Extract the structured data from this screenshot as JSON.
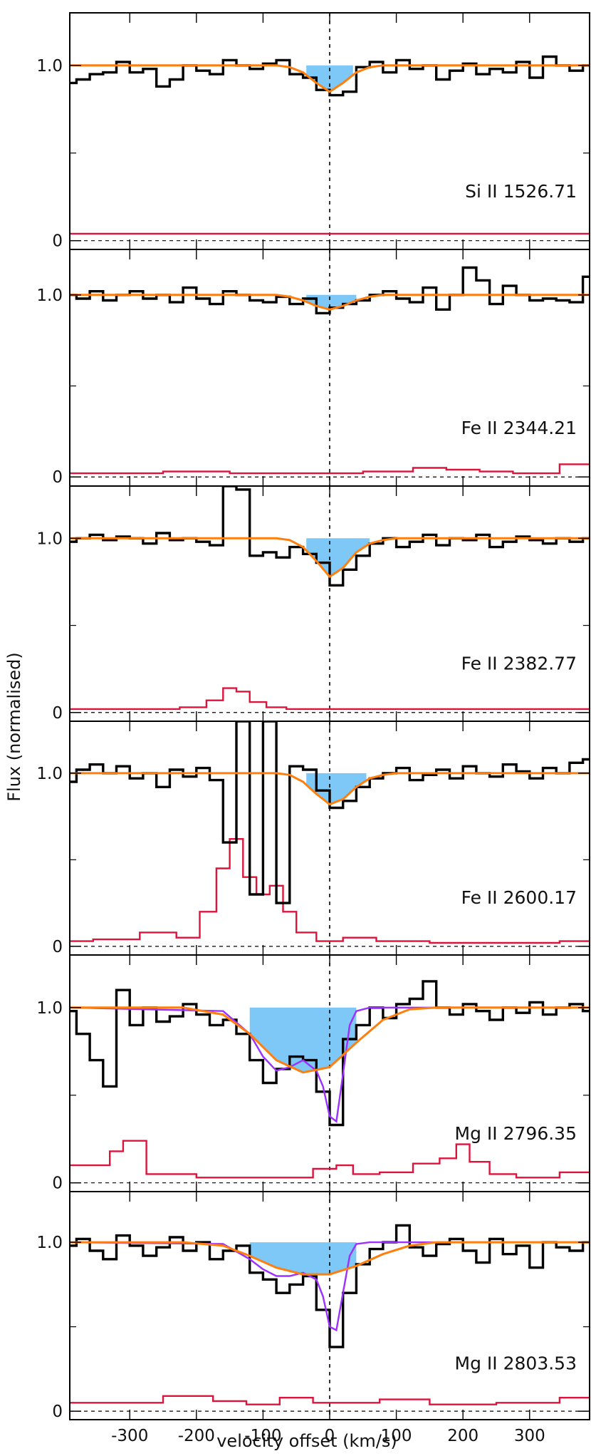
{
  "chart_data": {
    "type": "line",
    "xlabel": "velocity offset (km/s)",
    "ylabel": "Flux (normalised)",
    "xlim": [
      -390,
      390
    ],
    "x_ticks": [
      -300,
      -200,
      -100,
      0,
      100,
      200,
      300
    ],
    "x_tick_labels": [
      "-300",
      "-200",
      "-100",
      "0",
      "100",
      "200",
      "300"
    ],
    "vertical_reference_line": 0,
    "colors": {
      "data": "#000000",
      "fit": "#ff7f0e",
      "component_fit": "#9b30ff",
      "error": "#dc143c",
      "absorption_fill": "#7ec8f7",
      "reference": "#000000"
    },
    "panels": [
      {
        "label": "Si II 1526.71",
        "ylim": [
          -0.05,
          1.3
        ],
        "y_ticks": [
          0,
          1.0
        ],
        "y_tick_labels": [
          "0",
          "1.0"
        ],
        "fill_range": [
          -35,
          35
        ],
        "flux": {
          "x": [
            -390,
            -370,
            -350,
            -330,
            -310,
            -290,
            -270,
            -250,
            -230,
            -210,
            -190,
            -170,
            -150,
            -130,
            -110,
            -90,
            -70,
            -50,
            -30,
            -10,
            10,
            30,
            50,
            70,
            90,
            110,
            130,
            150,
            170,
            190,
            210,
            230,
            250,
            270,
            290,
            310,
            330,
            350,
            370,
            390
          ],
          "y": [
            0.9,
            0.92,
            0.95,
            0.96,
            1.02,
            0.96,
            0.98,
            0.88,
            0.92,
            1.0,
            0.97,
            0.95,
            1.03,
            1.0,
            0.98,
            1.01,
            1.03,
            0.95,
            0.93,
            0.86,
            0.83,
            0.85,
            0.99,
            1.02,
            0.96,
            1.03,
            0.98,
            1.0,
            0.92,
            0.97,
            1.01,
            0.95,
            0.98,
            0.96,
            1.02,
            0.93,
            1.05,
            1.0,
            0.97,
            1.0
          ]
        },
        "fit": {
          "x": [
            -390,
            -80,
            -60,
            -40,
            -20,
            0,
            20,
            40,
            60,
            80,
            390
          ],
          "y": [
            1.0,
            1.0,
            0.99,
            0.96,
            0.9,
            0.85,
            0.9,
            0.96,
            0.99,
            1.0,
            1.0
          ]
        },
        "error": {
          "x": [
            -390,
            -300,
            -200,
            -100,
            0,
            100,
            200,
            300,
            390
          ],
          "y": [
            0.04,
            0.04,
            0.04,
            0.04,
            0.04,
            0.04,
            0.04,
            0.04,
            0.04
          ]
        }
      },
      {
        "label": "Fe II 2344.21",
        "ylim": [
          -0.05,
          1.25
        ],
        "y_ticks": [
          0,
          1.0
        ],
        "y_tick_labels": [
          "0",
          "1.0"
        ],
        "fill_range": [
          -35,
          40
        ],
        "flux": {
          "x": [
            -390,
            -370,
            -350,
            -330,
            -310,
            -290,
            -270,
            -250,
            -230,
            -210,
            -190,
            -170,
            -150,
            -130,
            -110,
            -90,
            -70,
            -50,
            -30,
            -10,
            10,
            30,
            50,
            70,
            90,
            110,
            130,
            150,
            170,
            190,
            210,
            230,
            250,
            270,
            290,
            310,
            330,
            350,
            370,
            390
          ],
          "y": [
            1.0,
            0.98,
            1.02,
            0.97,
            1.0,
            1.02,
            0.98,
            1.0,
            0.96,
            1.04,
            0.98,
            0.95,
            1.02,
            1.0,
            0.97,
            0.96,
            0.99,
            0.95,
            0.98,
            0.9,
            0.93,
            0.95,
            0.97,
            1.0,
            1.02,
            0.98,
            0.96,
            1.04,
            0.92,
            1.0,
            1.15,
            1.08,
            0.95,
            1.05,
            1.0,
            0.97,
            0.98,
            0.97,
            0.96,
            1.1
          ]
        },
        "fit": {
          "x": [
            -390,
            -80,
            -60,
            -40,
            -20,
            0,
            20,
            40,
            60,
            80,
            390
          ],
          "y": [
            1.0,
            1.0,
            0.99,
            0.97,
            0.94,
            0.92,
            0.94,
            0.97,
            0.99,
            1.0,
            1.0
          ]
        },
        "error": {
          "x": [
            -390,
            -300,
            -200,
            -100,
            0,
            100,
            150,
            200,
            250,
            300,
            390
          ],
          "y": [
            0.02,
            0.02,
            0.03,
            0.02,
            0.02,
            0.03,
            0.05,
            0.04,
            0.03,
            0.02,
            0.07
          ]
        }
      },
      {
        "label": "Fe II 2382.77",
        "ylim": [
          -0.05,
          1.3
        ],
        "y_ticks": [
          0,
          1.0
        ],
        "y_tick_labels": [
          "0",
          "1.0"
        ],
        "fill_range": [
          -35,
          60
        ],
        "flux": {
          "x": [
            -390,
            -370,
            -350,
            -330,
            -310,
            -290,
            -270,
            -250,
            -230,
            -210,
            -190,
            -170,
            -150,
            -130,
            -110,
            -90,
            -70,
            -50,
            -30,
            -10,
            10,
            30,
            50,
            70,
            90,
            110,
            130,
            150,
            170,
            190,
            210,
            230,
            250,
            270,
            290,
            310,
            330,
            350,
            370,
            390
          ],
          "y": [
            0.98,
            1.0,
            1.02,
            0.99,
            1.01,
            1.0,
            0.97,
            1.03,
            0.99,
            1.0,
            0.98,
            0.96,
            1.3,
            1.28,
            0.9,
            0.92,
            0.89,
            0.95,
            0.91,
            0.86,
            0.73,
            0.82,
            0.9,
            0.97,
            1.0,
            0.95,
            0.98,
            1.02,
            0.96,
            1.0,
            0.99,
            1.02,
            0.95,
            0.98,
            1.01,
            0.99,
            0.97,
            1.0,
            0.98,
            1.0
          ]
        },
        "fit": {
          "x": [
            -390,
            -80,
            -60,
            -40,
            -20,
            0,
            20,
            40,
            60,
            80,
            100,
            390
          ],
          "y": [
            1.0,
            1.0,
            0.99,
            0.95,
            0.87,
            0.78,
            0.83,
            0.92,
            0.97,
            0.99,
            1.0,
            1.0
          ]
        },
        "error": {
          "x": [
            -390,
            -250,
            -200,
            -170,
            -150,
            -130,
            -110,
            -80,
            -50,
            0,
            100,
            200,
            300,
            390
          ],
          "y": [
            0.02,
            0.02,
            0.03,
            0.07,
            0.14,
            0.12,
            0.06,
            0.03,
            0.02,
            0.02,
            0.02,
            0.02,
            0.02,
            0.02
          ]
        }
      },
      {
        "label": "Fe II 2600.17",
        "ylim": [
          -0.05,
          1.3
        ],
        "y_ticks": [
          0,
          1.0
        ],
        "y_tick_labels": [
          "0",
          "1.0"
        ],
        "fill_range": [
          -35,
          55
        ],
        "flux": {
          "x": [
            -390,
            -370,
            -350,
            -330,
            -310,
            -290,
            -270,
            -250,
            -230,
            -210,
            -190,
            -170,
            -150,
            -130,
            -110,
            -90,
            -70,
            -50,
            -30,
            -10,
            10,
            30,
            50,
            70,
            90,
            110,
            130,
            150,
            170,
            190,
            210,
            230,
            250,
            270,
            290,
            310,
            330,
            350,
            370,
            390
          ],
          "y": [
            0.95,
            1.02,
            1.05,
            1.0,
            1.04,
            0.97,
            1.0,
            0.92,
            1.02,
            0.98,
            1.03,
            0.96,
            0.6,
            1.3,
            0.3,
            1.3,
            0.25,
            1.04,
            1.02,
            0.9,
            0.8,
            0.84,
            0.92,
            0.97,
            1.0,
            1.03,
            0.96,
            0.99,
            1.02,
            0.97,
            1.04,
            1.0,
            0.98,
            1.05,
            1.01,
            0.97,
            1.03,
            1.0,
            1.06,
            1.08
          ]
        },
        "fit": {
          "x": [
            -390,
            -80,
            -60,
            -40,
            -20,
            0,
            20,
            40,
            60,
            80,
            100,
            390
          ],
          "y": [
            1.0,
            1.0,
            0.99,
            0.95,
            0.88,
            0.82,
            0.85,
            0.92,
            0.97,
            0.99,
            1.0,
            1.0
          ]
        },
        "error": {
          "x": [
            -390,
            -320,
            -250,
            -210,
            -180,
            -160,
            -140,
            -120,
            -100,
            -80,
            -60,
            -40,
            0,
            40,
            100,
            200,
            300,
            390
          ],
          "y": [
            0.03,
            0.04,
            0.08,
            0.05,
            0.2,
            0.45,
            0.62,
            0.4,
            0.3,
            0.35,
            0.2,
            0.08,
            0.03,
            0.05,
            0.03,
            0.02,
            0.02,
            0.03
          ]
        }
      },
      {
        "label": "Mg II 2796.35",
        "ylim": [
          -0.05,
          1.3
        ],
        "y_ticks": [
          0,
          1.0
        ],
        "y_tick_labels": [
          "0",
          "1.0"
        ],
        "fill_range": [
          -120,
          40
        ],
        "flux": {
          "x": [
            -390,
            -370,
            -350,
            -330,
            -310,
            -290,
            -270,
            -250,
            -230,
            -210,
            -190,
            -170,
            -150,
            -130,
            -110,
            -90,
            -70,
            -50,
            -30,
            -10,
            10,
            30,
            50,
            70,
            90,
            110,
            130,
            150,
            170,
            190,
            210,
            230,
            250,
            270,
            290,
            310,
            330,
            350,
            370,
            390
          ],
          "y": [
            0.98,
            0.85,
            0.7,
            0.55,
            1.1,
            0.9,
            1.0,
            0.92,
            0.95,
            1.02,
            0.96,
            0.9,
            0.93,
            0.85,
            0.7,
            0.57,
            0.65,
            0.72,
            0.7,
            0.52,
            0.33,
            0.82,
            0.9,
            1.0,
            0.94,
            1.02,
            1.05,
            1.15,
            1.0,
            0.96,
            1.02,
            0.98,
            0.93,
            1.0,
            0.97,
            1.03,
            0.96,
            1.0,
            1.02,
            0.98
          ]
        },
        "fit": {
          "x": [
            -390,
            -220,
            -160,
            -120,
            -80,
            -40,
            0,
            40,
            80,
            120,
            160,
            200,
            390
          ],
          "y": [
            1.0,
            1.0,
            0.96,
            0.85,
            0.7,
            0.63,
            0.66,
            0.8,
            0.93,
            0.99,
            1.0,
            1.0,
            1.0
          ]
        },
        "component_fit": {
          "x": [
            -390,
            -160,
            -120,
            -100,
            -80,
            -60,
            -40,
            -20,
            -10,
            0,
            10,
            20,
            30,
            40,
            60,
            80,
            390
          ],
          "y": [
            1.0,
            0.98,
            0.85,
            0.72,
            0.64,
            0.66,
            0.7,
            0.64,
            0.55,
            0.38,
            0.35,
            0.62,
            0.9,
            0.98,
            1.0,
            1.0,
            1.0
          ]
        },
        "error": {
          "x": [
            -390,
            -340,
            -320,
            -300,
            -250,
            -150,
            -50,
            0,
            20,
            50,
            100,
            150,
            180,
            200,
            220,
            260,
            300,
            390
          ],
          "y": [
            0.1,
            0.1,
            0.18,
            0.24,
            0.05,
            0.03,
            0.03,
            0.08,
            0.1,
            0.05,
            0.06,
            0.11,
            0.14,
            0.22,
            0.12,
            0.05,
            0.03,
            0.06
          ]
        }
      },
      {
        "label": "Mg II 2803.53",
        "ylim": [
          -0.05,
          1.3
        ],
        "y_ticks": [
          0,
          1.0
        ],
        "y_tick_labels": [
          "0",
          "1.0"
        ],
        "fill_range": [
          -120,
          40
        ],
        "flux": {
          "x": [
            -390,
            -370,
            -350,
            -330,
            -310,
            -290,
            -270,
            -250,
            -230,
            -210,
            -190,
            -170,
            -150,
            -130,
            -110,
            -90,
            -70,
            -50,
            -30,
            -10,
            10,
            30,
            50,
            70,
            90,
            110,
            130,
            150,
            170,
            190,
            210,
            230,
            250,
            270,
            290,
            310,
            330,
            350,
            370,
            390
          ],
          "y": [
            0.98,
            1.02,
            0.95,
            0.9,
            1.04,
            0.98,
            0.92,
            0.97,
            1.03,
            0.95,
            1.0,
            0.9,
            0.95,
            0.98,
            0.82,
            0.78,
            0.7,
            0.75,
            0.8,
            0.6,
            0.38,
            0.7,
            0.87,
            0.96,
            1.0,
            1.1,
            0.97,
            0.92,
            0.99,
            1.02,
            0.95,
            0.88,
            1.02,
            0.93,
            0.98,
            0.85,
            1.0,
            0.97,
            0.95,
            1.0
          ]
        },
        "fit": {
          "x": [
            -390,
            -220,
            -160,
            -120,
            -80,
            -40,
            0,
            40,
            80,
            120,
            160,
            200,
            390
          ],
          "y": [
            1.0,
            1.0,
            0.98,
            0.92,
            0.85,
            0.81,
            0.81,
            0.86,
            0.93,
            0.98,
            1.0,
            1.0,
            1.0
          ]
        },
        "component_fit": {
          "x": [
            -390,
            -160,
            -120,
            -100,
            -80,
            -60,
            -40,
            -20,
            -10,
            0,
            10,
            20,
            30,
            40,
            60,
            80,
            390
          ],
          "y": [
            1.0,
            0.99,
            0.9,
            0.84,
            0.8,
            0.8,
            0.82,
            0.78,
            0.68,
            0.5,
            0.48,
            0.7,
            0.92,
            0.99,
            1.0,
            1.0,
            1.0
          ]
        },
        "error": {
          "x": [
            -390,
            -300,
            -200,
            -150,
            -100,
            -50,
            0,
            50,
            100,
            200,
            300,
            390
          ],
          "y": [
            0.05,
            0.05,
            0.09,
            0.06,
            0.04,
            0.08,
            0.05,
            0.05,
            0.07,
            0.04,
            0.05,
            0.08
          ]
        }
      }
    ]
  }
}
